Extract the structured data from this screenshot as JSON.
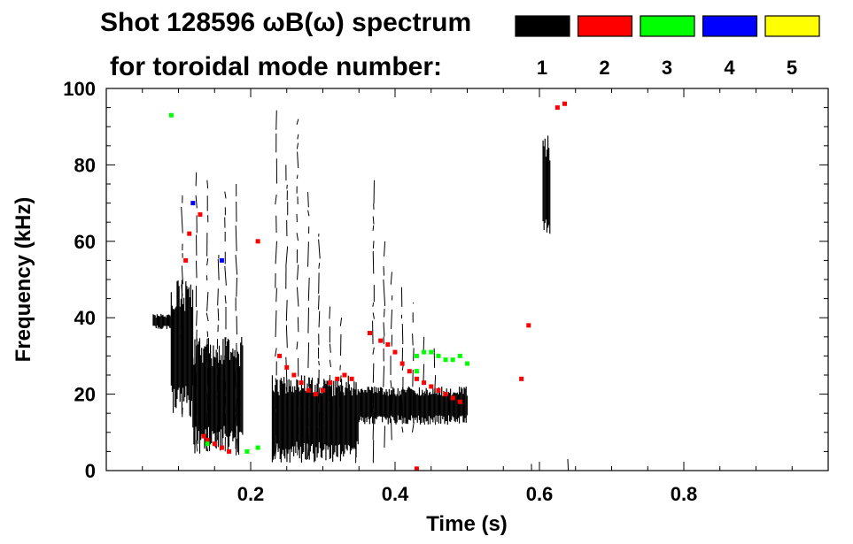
{
  "title": {
    "line1": "Shot 128596 ωB(ω) spectrum",
    "line2": "for toroidal mode number:"
  },
  "legend": [
    {
      "label": "1",
      "color": "#000000"
    },
    {
      "label": "2",
      "color": "#ff0000"
    },
    {
      "label": "3",
      "color": "#00ff00"
    },
    {
      "label": "4",
      "color": "#0000ff"
    },
    {
      "label": "5",
      "color": "#ffff00"
    }
  ],
  "chart_data": {
    "type": "heatmap",
    "title": "Shot 128596 ωB(ω) spectrum for toroidal mode number: 1 2 3 4 5",
    "xlabel": "Time (s)",
    "ylabel": "Frequency (kHz)",
    "xlim": [
      0.0,
      1.0
    ],
    "ylim": [
      0,
      100
    ],
    "xticks": [
      {
        "value": 0.2,
        "label": "0.2"
      },
      {
        "value": 0.4,
        "label": "0.4"
      },
      {
        "value": 0.6,
        "label": "0.6"
      },
      {
        "value": 0.8,
        "label": "0.8"
      }
    ],
    "yticks": [
      {
        "value": 0,
        "label": "0"
      },
      {
        "value": 20,
        "label": "20"
      },
      {
        "value": 40,
        "label": "40"
      },
      {
        "value": 60,
        "label": "60"
      },
      {
        "value": 80,
        "label": "80"
      },
      {
        "value": 100,
        "label": "100"
      }
    ],
    "minor_x_step": 0.05,
    "minor_y_step": 5,
    "series": [
      {
        "name": "n=1",
        "color": "#000000",
        "regions": [
          {
            "t0": 0.065,
            "t1": 0.09,
            "f0": 37,
            "f1": 41
          },
          {
            "t0": 0.09,
            "t1": 0.12,
            "f0": 14,
            "f1": 50
          },
          {
            "t0": 0.12,
            "t1": 0.19,
            "f0": 4,
            "f1": 35
          },
          {
            "t0": 0.23,
            "t1": 0.35,
            "f0": 2,
            "f1": 25
          },
          {
            "t0": 0.35,
            "t1": 0.5,
            "f0": 12,
            "f1": 22
          },
          {
            "t0": 0.605,
            "t1": 0.615,
            "f0": 60,
            "f1": 88
          }
        ],
        "streaks": [
          {
            "t": 0.105,
            "f0": 14,
            "f1": 72
          },
          {
            "t": 0.125,
            "f0": 5,
            "f1": 78
          },
          {
            "t": 0.14,
            "f0": 5,
            "f1": 76
          },
          {
            "t": 0.155,
            "f0": 8,
            "f1": 58
          },
          {
            "t": 0.165,
            "f0": 5,
            "f1": 73
          },
          {
            "t": 0.18,
            "f0": 4,
            "f1": 75
          },
          {
            "t": 0.235,
            "f0": 3,
            "f1": 95
          },
          {
            "t": 0.25,
            "f0": 4,
            "f1": 80
          },
          {
            "t": 0.265,
            "f0": 4,
            "f1": 92
          },
          {
            "t": 0.28,
            "f0": 3,
            "f1": 75
          },
          {
            "t": 0.295,
            "f0": 8,
            "f1": 62
          },
          {
            "t": 0.31,
            "f0": 10,
            "f1": 45
          },
          {
            "t": 0.325,
            "f0": 6,
            "f1": 40
          },
          {
            "t": 0.345,
            "f0": 2,
            "f1": 14
          },
          {
            "t": 0.37,
            "f0": 2,
            "f1": 76
          },
          {
            "t": 0.385,
            "f0": 6,
            "f1": 60
          },
          {
            "t": 0.395,
            "f0": 8,
            "f1": 52
          },
          {
            "t": 0.41,
            "f0": 10,
            "f1": 48
          },
          {
            "t": 0.425,
            "f0": 10,
            "f1": 44
          },
          {
            "t": 0.44,
            "f0": 12,
            "f1": 35
          },
          {
            "t": 0.455,
            "f0": 12,
            "f1": 32
          },
          {
            "t": 0.59,
            "f0": 0,
            "f1": 3
          },
          {
            "t": 0.64,
            "f0": 0,
            "f1": 3
          }
        ]
      },
      {
        "name": "n=2",
        "color": "#ff0000",
        "points": [
          [
            0.135,
            9
          ],
          [
            0.14,
            8
          ],
          [
            0.15,
            7
          ],
          [
            0.16,
            6
          ],
          [
            0.17,
            5
          ],
          [
            0.24,
            30
          ],
          [
            0.25,
            27
          ],
          [
            0.26,
            25
          ],
          [
            0.27,
            23
          ],
          [
            0.28,
            21
          ],
          [
            0.29,
            20
          ],
          [
            0.3,
            21
          ],
          [
            0.31,
            23
          ],
          [
            0.32,
            24
          ],
          [
            0.33,
            25
          ],
          [
            0.34,
            24
          ],
          [
            0.365,
            36
          ],
          [
            0.38,
            34
          ],
          [
            0.39,
            33
          ],
          [
            0.4,
            31
          ],
          [
            0.41,
            28
          ],
          [
            0.42,
            26
          ],
          [
            0.43,
            24
          ],
          [
            0.44,
            23
          ],
          [
            0.45,
            22
          ],
          [
            0.46,
            21
          ],
          [
            0.47,
            20
          ],
          [
            0.48,
            19
          ],
          [
            0.49,
            18
          ],
          [
            0.115,
            62
          ],
          [
            0.13,
            67
          ],
          [
            0.21,
            60
          ],
          [
            0.11,
            55
          ],
          [
            0.585,
            38
          ],
          [
            0.625,
            95
          ],
          [
            0.635,
            96
          ],
          [
            0.575,
            24
          ],
          [
            0.43,
            0.5
          ]
        ]
      },
      {
        "name": "n=3",
        "color": "#00ff00",
        "points": [
          [
            0.14,
            7
          ],
          [
            0.195,
            5
          ],
          [
            0.21,
            6
          ],
          [
            0.09,
            93
          ],
          [
            0.43,
            30
          ],
          [
            0.44,
            31
          ],
          [
            0.45,
            31
          ],
          [
            0.46,
            30
          ],
          [
            0.47,
            29
          ],
          [
            0.48,
            29
          ],
          [
            0.49,
            30
          ],
          [
            0.43,
            26
          ],
          [
            0.5,
            28
          ]
        ]
      },
      {
        "name": "n=4",
        "color": "#0000ff",
        "points": [
          [
            0.16,
            55
          ],
          [
            0.12,
            70
          ]
        ]
      },
      {
        "name": "n=5",
        "color": "#ffff00",
        "points": []
      }
    ]
  }
}
